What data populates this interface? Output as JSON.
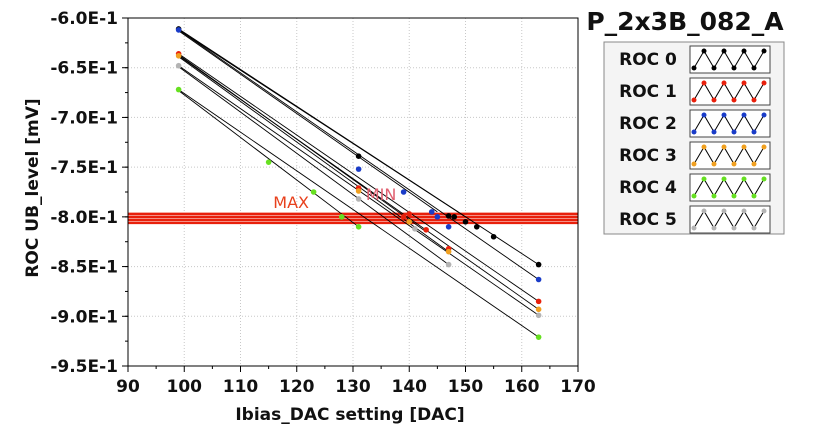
{
  "chart_data": {
    "type": "scatter",
    "title": "P_2x3B_082_A",
    "xlabel": "Ibias_DAC setting [DAC]",
    "ylabel": "ROC UB_level [mV]",
    "xlim": [
      90,
      170
    ],
    "ylim": [
      -0.95,
      -0.6
    ],
    "x_ticks": [
      "90",
      "100",
      "110",
      "120",
      "130",
      "140",
      "150",
      "160",
      "170"
    ],
    "y_ticks": [
      "-6.0E-1",
      "-6.5E-1",
      "-7.0E-1",
      "-7.5E-1",
      "-8.0E-1",
      "-8.5E-1",
      "-9.0E-1",
      "-9.5E-1"
    ],
    "grid": true,
    "legend_position": "top-right",
    "series": [
      {
        "name": "ROC 0",
        "color": "#000000",
        "fits": [
          [
            99,
            -0.611,
            163,
            -0.848
          ],
          [
            99,
            -0.612,
            150,
            -0.8
          ]
        ],
        "points": [
          [
            99,
            -0.611
          ],
          [
            131,
            -0.739
          ],
          [
            147,
            -0.799
          ],
          [
            148,
            -0.8
          ],
          [
            150,
            -0.805
          ],
          [
            152,
            -0.81
          ],
          [
            155,
            -0.82
          ],
          [
            163,
            -0.848
          ]
        ]
      },
      {
        "name": "ROC 1",
        "color": "#e8200c",
        "fits": [
          [
            99,
            -0.636,
            163,
            -0.885
          ],
          [
            99,
            -0.637,
            143,
            -0.815
          ]
        ],
        "points": [
          [
            99,
            -0.636
          ],
          [
            131,
            -0.771
          ],
          [
            139,
            -0.8
          ],
          [
            140,
            -0.797
          ],
          [
            143,
            -0.813
          ],
          [
            147,
            -0.832
          ],
          [
            163,
            -0.885
          ]
        ]
      },
      {
        "name": "ROC 2",
        "color": "#1a3cc8",
        "fits": [
          [
            99,
            -0.612,
            163,
            -0.863
          ],
          [
            99,
            -0.613,
            145,
            -0.795
          ]
        ],
        "points": [
          [
            99,
            -0.612
          ],
          [
            131,
            -0.752
          ],
          [
            139,
            -0.775
          ],
          [
            144,
            -0.795
          ],
          [
            145,
            -0.8
          ],
          [
            147,
            -0.81
          ],
          [
            163,
            -0.863
          ]
        ]
      },
      {
        "name": "ROC 3",
        "color": "#f0a020",
        "fits": [
          [
            99,
            -0.638,
            163,
            -0.893
          ],
          [
            99,
            -0.639,
            147,
            -0.835
          ]
        ],
        "points": [
          [
            99,
            -0.638
          ],
          [
            131,
            -0.774
          ],
          [
            140,
            -0.805
          ],
          [
            147,
            -0.835
          ],
          [
            163,
            -0.893
          ]
        ]
      },
      {
        "name": "ROC 4",
        "color": "#66e020",
        "fits": [
          [
            99,
            -0.672,
            163,
            -0.921
          ],
          [
            99,
            -0.673,
            131,
            -0.81
          ]
        ],
        "points": [
          [
            99,
            -0.672
          ],
          [
            115,
            -0.745
          ],
          [
            123,
            -0.775
          ],
          [
            128,
            -0.8
          ],
          [
            131,
            -0.81
          ],
          [
            163,
            -0.921
          ]
        ]
      },
      {
        "name": "ROC 5",
        "color": "#b4b4b4",
        "fits": [
          [
            99,
            -0.648,
            163,
            -0.899
          ],
          [
            99,
            -0.649,
            147,
            -0.848
          ]
        ],
        "points": [
          [
            99,
            -0.648
          ],
          [
            131,
            -0.782
          ],
          [
            141,
            -0.812
          ],
          [
            147,
            -0.848
          ],
          [
            163,
            -0.899
          ]
        ]
      }
    ],
    "annotations": [
      {
        "text": "MAX",
        "x": 119,
        "y": -0.791,
        "color": "#e8401c"
      },
      {
        "text": "MIN",
        "x": 135,
        "y": -0.783,
        "color": "#e06070"
      }
    ],
    "hlines": [
      {
        "y": -0.797,
        "color": "#e8200c"
      },
      {
        "y": -0.8,
        "color": "#e8200c"
      },
      {
        "y": -0.803,
        "color": "#e8200c"
      },
      {
        "y": -0.806,
        "color": "#e8200c"
      }
    ]
  }
}
